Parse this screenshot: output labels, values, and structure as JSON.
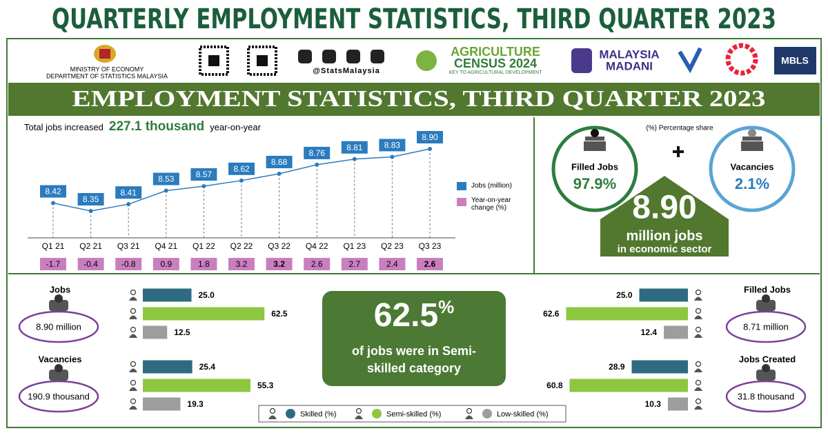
{
  "title": "QUARTERLY EMPLOYMENT STATISTICS, THIRD QUARTER 2023",
  "header": {
    "ministry": "MINISTRY OF ECONOMY",
    "department": "DEPARTMENT OF STATISTICS MALAYSIA",
    "social": "@StatsMalaysia",
    "census": [
      "AGRICULTURE",
      "CENSUS 2024",
      "KEY TO AGRICULTURAL DEVELOPMENT"
    ],
    "madani": [
      "MALAYSIA",
      "MADANI"
    ],
    "mbls": "MBLS"
  },
  "banner": "EMPLOYMENT STATISTICS, THIRD QUARTER 2023",
  "chart_data": [
    {
      "type": "line",
      "headline": [
        "Total jobs increased",
        "227.1 thousand",
        "year-on-year"
      ],
      "categories": [
        "Q1 21",
        "Q2 21",
        "Q3 21",
        "Q4 21",
        "Q1 22",
        "Q2 22",
        "Q3 22",
        "Q4 22",
        "Q1 23",
        "Q2 23",
        "Q3 23"
      ],
      "series": [
        {
          "name": "Jobs (million)",
          "color": "#2b7bbf",
          "values": [
            8.42,
            8.35,
            8.41,
            8.53,
            8.57,
            8.62,
            8.68,
            8.76,
            8.81,
            8.83,
            8.9
          ],
          "value_labels": [
            "8.42",
            "8.35",
            "8.41",
            "8.53",
            "8.57",
            "8.62",
            "8.68",
            "8.76",
            "8.81",
            "8.83",
            "8.90"
          ]
        },
        {
          "name": "Year-on-year change (%)",
          "color": "#c97fbf",
          "values": [
            -1.7,
            -0.4,
            -0.8,
            0.9,
            1.8,
            3.2,
            3.2,
            2.6,
            2.7,
            2.4,
            2.6
          ]
        }
      ]
    },
    {
      "type": "bar",
      "title": "Jobs",
      "subtitle": "8.90 million",
      "values": [
        25,
        62.5,
        12.5
      ],
      "value_labels": [
        "25.0",
        "62.5",
        "12.5"
      ]
    },
    {
      "type": "bar",
      "title": "Vacancies",
      "subtitle": "190.9 thousand",
      "values": [
        25.4,
        55.3,
        19.3
      ]
    },
    {
      "type": "bar",
      "title": "Filled Jobs",
      "subtitle": "8.71 million",
      "values": [
        25,
        62.6,
        12.4
      ],
      "value_labels": [
        "25.0",
        "62.6",
        "12.4"
      ]
    },
    {
      "type": "bar",
      "title": "Jobs Created",
      "subtitle": "31.8 thousand",
      "values": [
        28.9,
        60.8,
        10.3
      ]
    }
  ],
  "bar_legend": {
    "categories": [
      "Skilled (%)",
      "Semi-skilled (%)",
      "Low-skilled (%)"
    ],
    "colors": [
      "#2e6b80",
      "#8dc63f",
      "#9d9d9d"
    ]
  },
  "share": {
    "note": "(%) Percentage share",
    "filled": {
      "label": "Filled Jobs",
      "value": "97.9%"
    },
    "vacancies": {
      "label": "Vacancies",
      "value": "2.1%"
    },
    "total": "8.90",
    "unit": "million jobs",
    "sector": "in economic sector"
  },
  "highlight": {
    "number": "62.5",
    "unit": "%",
    "text": "of jobs were in Semi-skilled category"
  }
}
